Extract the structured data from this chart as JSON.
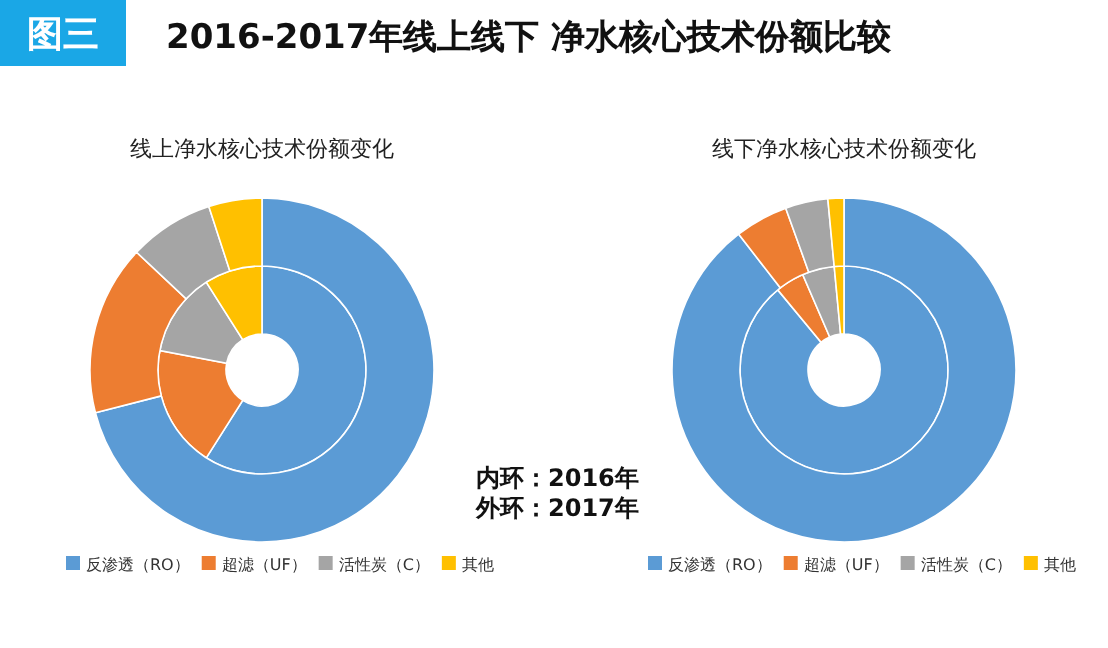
{
  "chart_data": [
    {
      "type": "other",
      "title": "2016-2017年线上线下 净水核心技术份额比较",
      "annotations": [
        "图三",
        "内环：2016年",
        "外环：2017年"
      ]
    },
    {
      "type": "donut",
      "title": "线上净水核心技术份额变化",
      "categories": [
        "反渗透（RO）",
        "超滤（UF）",
        "活性炭（C）",
        "其他"
      ],
      "colors": [
        "#5b9bd5",
        "#ed7d31",
        "#a5a5a5",
        "#ffc000"
      ],
      "legend": "bottom",
      "series": [
        {
          "values": [
            59,
            19,
            13,
            9
          ]
        },
        {
          "values": [
            71,
            16,
            8,
            5
          ]
        }
      ]
    },
    {
      "type": "donut",
      "title": "线下净水核心技术份额变化",
      "categories": [
        "反渗透（RO）",
        "超滤（UF）",
        "活性炭（C）",
        "其他"
      ],
      "colors": [
        "#5b9bd5",
        "#ed7d31",
        "#a5a5a5",
        "#ffc000"
      ],
      "legend": "bottom",
      "series": [
        {
          "values": [
            89,
            4.5,
            5,
            1.5
          ]
        },
        {
          "values": [
            89.5,
            5,
            4,
            1.5
          ]
        }
      ]
    }
  ]
}
